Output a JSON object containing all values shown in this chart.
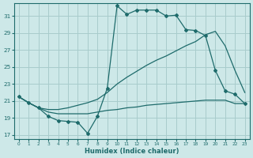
{
  "xlabel": "Humidex (Indice chaleur)",
  "background_color": "#cde8e8",
  "grid_color": "#a8cccc",
  "line_color": "#1e6b6b",
  "x_ticks": [
    0,
    1,
    2,
    3,
    4,
    5,
    6,
    7,
    8,
    9,
    10,
    11,
    12,
    13,
    14,
    15,
    16,
    17,
    18,
    19,
    20,
    21,
    22,
    23
  ],
  "y_ticks": [
    17,
    19,
    21,
    23,
    25,
    27,
    29,
    31
  ],
  "xlim": [
    -0.5,
    23.5
  ],
  "ylim": [
    16.5,
    32.5
  ],
  "line1_x": [
    0,
    1,
    2,
    3,
    4,
    5,
    6,
    7,
    8,
    9,
    10,
    11,
    12,
    13,
    14,
    15,
    16,
    17,
    18,
    19,
    20,
    21,
    22,
    23
  ],
  "line1_y": [
    21.5,
    20.8,
    20.2,
    19.2,
    18.7,
    18.6,
    18.5,
    17.2,
    19.2,
    22.5,
    32.2,
    31.2,
    31.7,
    31.7,
    31.7,
    31.0,
    31.1,
    29.4,
    29.3,
    28.7,
    24.6,
    22.2,
    21.8,
    20.7
  ],
  "line2_x": [
    0,
    1,
    2,
    3,
    4,
    5,
    6,
    7,
    8,
    9,
    10,
    11,
    12,
    13,
    14,
    15,
    16,
    17,
    18,
    19,
    20,
    21,
    22,
    23
  ],
  "line2_y": [
    21.5,
    20.8,
    20.2,
    20.0,
    20.0,
    20.2,
    20.5,
    20.8,
    21.2,
    22.0,
    23.0,
    23.8,
    24.5,
    25.2,
    25.8,
    26.3,
    26.9,
    27.5,
    28.0,
    28.8,
    29.2,
    27.5,
    24.6,
    22.0
  ],
  "line3_x": [
    0,
    1,
    2,
    3,
    4,
    5,
    6,
    7,
    8,
    9,
    10,
    11,
    12,
    13,
    14,
    15,
    16,
    17,
    18,
    19,
    20,
    21,
    22,
    23
  ],
  "line3_y": [
    21.5,
    20.8,
    20.2,
    19.7,
    19.5,
    19.5,
    19.5,
    19.5,
    19.7,
    19.9,
    20.0,
    20.2,
    20.3,
    20.5,
    20.6,
    20.7,
    20.8,
    20.9,
    21.0,
    21.1,
    21.1,
    21.1,
    20.7,
    20.7
  ]
}
